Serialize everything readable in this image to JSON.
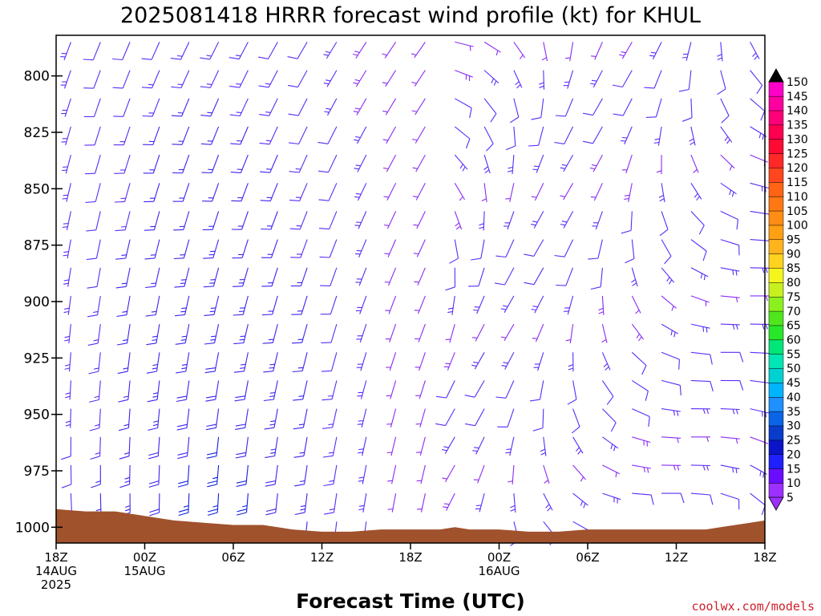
{
  "chart_data": {
    "type": "wind-barb-profile",
    "title": "2025081418 HRRR forecast wind profile (kt) for KHUL",
    "xlabel": "Forecast Time (UTC)",
    "ylabel": "",
    "credit": "coolwx.com/models",
    "x_range_hours": [
      0,
      48
    ],
    "y_range_hpa": [
      782,
      1007
    ],
    "y_ticks": [
      {
        "value": 800,
        "label": "800"
      },
      {
        "value": 825,
        "label": "825"
      },
      {
        "value": 850,
        "label": "850"
      },
      {
        "value": 875,
        "label": "875"
      },
      {
        "value": 900,
        "label": "900"
      },
      {
        "value": 925,
        "label": "925"
      },
      {
        "value": 950,
        "label": "950"
      },
      {
        "value": 975,
        "label": "975"
      },
      {
        "value": 1000,
        "label": "1000"
      }
    ],
    "x_ticks": [
      {
        "hour": 0,
        "lines": [
          "18Z",
          "14AUG",
          "2025"
        ]
      },
      {
        "hour": 6,
        "lines": [
          "00Z",
          "15AUG"
        ]
      },
      {
        "hour": 12,
        "lines": [
          "06Z"
        ]
      },
      {
        "hour": 18,
        "lines": [
          "12Z"
        ]
      },
      {
        "hour": 24,
        "lines": [
          "18Z"
        ]
      },
      {
        "hour": 30,
        "lines": [
          "00Z",
          "16AUG"
        ]
      },
      {
        "hour": 36,
        "lines": [
          "06Z"
        ]
      },
      {
        "hour": 42,
        "lines": [
          "12Z"
        ]
      },
      {
        "hour": 48,
        "lines": [
          "18Z"
        ]
      }
    ],
    "barb_columns_hours": [
      1,
      3,
      5,
      7,
      9,
      11,
      13,
      15,
      17,
      19,
      21,
      23,
      25,
      27,
      29,
      31,
      33,
      35,
      37,
      39,
      41,
      43,
      45,
      47
    ],
    "barb_levels_hpa": [
      785,
      797.5,
      810,
      822.5,
      835,
      847.5,
      860,
      872.5,
      885,
      897.5,
      910,
      922.5,
      935,
      947.5,
      960,
      972.5,
      985,
      997.5
    ],
    "surface_pressure_hpa": [
      [
        0,
        992
      ],
      [
        2,
        993
      ],
      [
        4,
        993
      ],
      [
        5,
        994
      ],
      [
        6,
        995
      ],
      [
        7,
        996
      ],
      [
        8,
        997
      ],
      [
        10,
        998
      ],
      [
        12,
        999
      ],
      [
        14,
        999
      ],
      [
        15,
        1000
      ],
      [
        16,
        1001
      ],
      [
        18,
        1002
      ],
      [
        20,
        1002
      ],
      [
        22,
        1001
      ],
      [
        24,
        1001
      ],
      [
        26,
        1001
      ],
      [
        27,
        1000
      ],
      [
        28,
        1001
      ],
      [
        30,
        1001
      ],
      [
        32,
        1002
      ],
      [
        34,
        1002
      ],
      [
        36,
        1001
      ],
      [
        38,
        1001
      ],
      [
        40,
        1001
      ],
      [
        42,
        1001
      ],
      [
        44,
        1001
      ],
      [
        45,
        1000
      ],
      [
        46,
        999
      ],
      [
        47,
        998
      ],
      [
        48,
        997
      ]
    ],
    "colorbar": {
      "levels": [
        5,
        10,
        15,
        20,
        25,
        30,
        35,
        40,
        45,
        50,
        55,
        60,
        65,
        70,
        75,
        80,
        85,
        90,
        95,
        100,
        105,
        110,
        115,
        120,
        125,
        130,
        135,
        140,
        145,
        150
      ],
      "colors": [
        "#9b30ff",
        "#6a0dff",
        "#2020ff",
        "#0a14c8",
        "#0a3ccc",
        "#0a64e6",
        "#1e90ff",
        "#00b4ff",
        "#00d2d2",
        "#00e6b4",
        "#00e678",
        "#28e628",
        "#50e61e",
        "#8cf01e",
        "#c8f01e",
        "#f5f51e",
        "#ffd21e",
        "#ffb41e",
        "#ffa014",
        "#ff8c14",
        "#ff7814",
        "#ff6414",
        "#ff461e",
        "#ff2828",
        "#ff0a32",
        "#ff0050",
        "#ff0078",
        "#ff00a0",
        "#ff00c8",
        "#ff00e6"
      ],
      "top_color": "#000000",
      "bottom_color": "#9b30ff"
    },
    "terrain_color": "#a0522d"
  }
}
